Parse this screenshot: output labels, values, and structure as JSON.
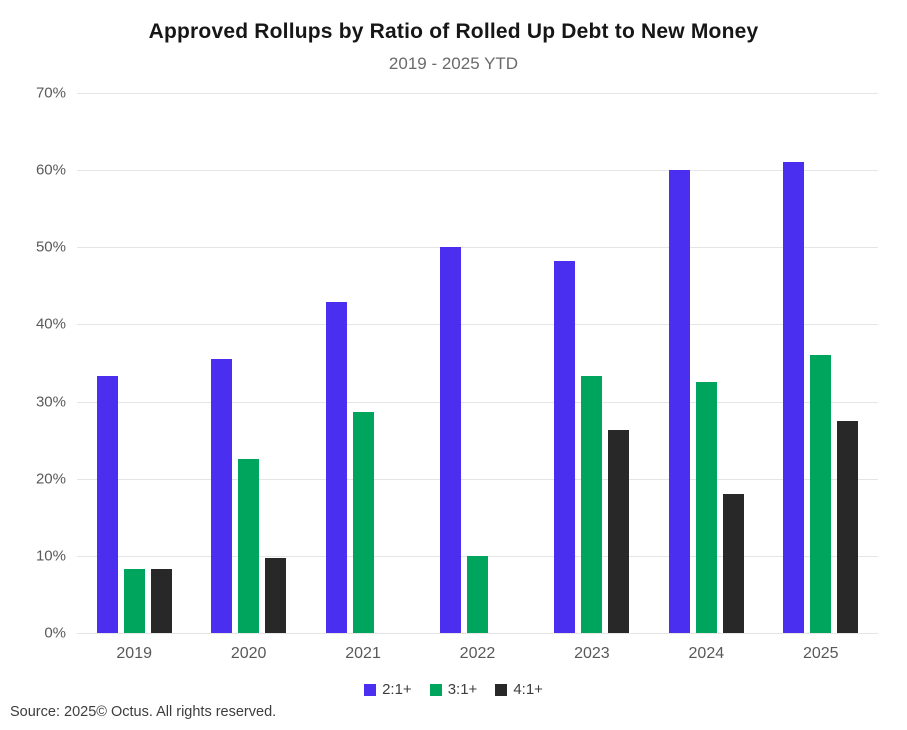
{
  "title": "Approved Rollups by Ratio of Rolled Up Debt to New Money",
  "subtitle": "2019 - 2025 YTD",
  "source": "Source: 2025© Octus. All rights reserved.",
  "colors": {
    "series_2_1": "#4a2ff0",
    "series_3_1": "#00a55d",
    "series_4_1": "#282828",
    "gridline": "#e5e5e5",
    "axis_text": "#595959",
    "title_text": "#161616",
    "subtitle_text": "#6a6a6a",
    "background": "#ffffff"
  },
  "chart_data": {
    "type": "bar",
    "title": "Approved Rollups by Ratio of Rolled Up Debt to New Money",
    "subtitle": "2019 - 2025 YTD",
    "categories": [
      "2019",
      "2020",
      "2021",
      "2022",
      "2023",
      "2024",
      "2025"
    ],
    "series": [
      {
        "name": "2:1+",
        "color_key": "series_2_1",
        "values": [
          33.3,
          35.5,
          42.9,
          50.0,
          48.2,
          60.0,
          61.1
        ]
      },
      {
        "name": "3:1+",
        "color_key": "series_3_1",
        "values": [
          8.3,
          22.5,
          28.6,
          10.0,
          33.3,
          32.5,
          36.0
        ]
      },
      {
        "name": "4:1+",
        "color_key": "series_4_1",
        "values": [
          8.3,
          9.7,
          0,
          0,
          26.3,
          18.0,
          27.5
        ]
      }
    ],
    "xlabel": "",
    "ylabel": "",
    "ylim": [
      0,
      70
    ],
    "yticks": [
      0,
      10,
      20,
      30,
      40,
      50,
      60,
      70
    ],
    "ytick_suffix": "%",
    "grid": true,
    "legend_position": "bottom"
  }
}
